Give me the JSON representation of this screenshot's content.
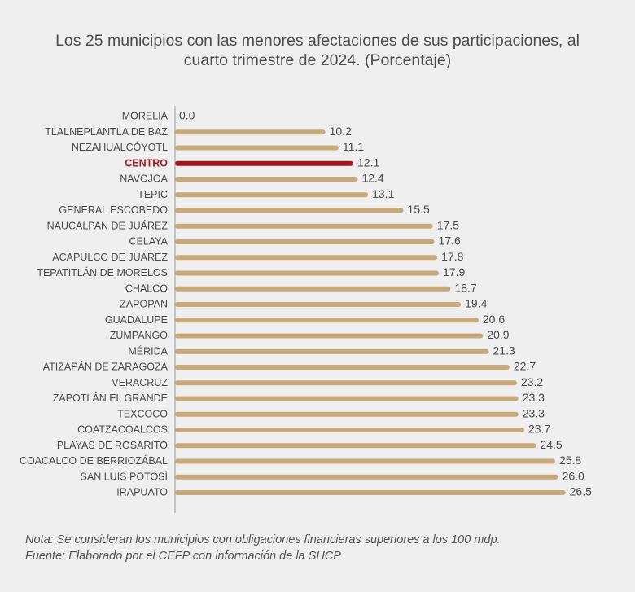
{
  "chart_data": {
    "type": "bar",
    "orientation": "horizontal",
    "title_lines": [
      "Los 25 municipios con las menores afectaciones de sus participaciones, al",
      "cuarto trimestre de 2024. (Porcentaje)"
    ],
    "categories": [
      "MORELIA",
      "TLALNEPLANTLA DE BAZ",
      "NEZAHUALCÓYOTL",
      "CENTRO",
      "NAVOJOA",
      "TEPIC",
      "GENERAL ESCOBEDO",
      "NAUCALPAN DE JUÁREZ",
      "CELAYA",
      "ACAPULCO DE JUÁREZ",
      "TEPATITLÁN DE MORELOS",
      "CHALCO",
      "ZAPOPAN",
      "GUADALUPE",
      "ZUMPANGO",
      "MÉRIDA",
      "ATIZAPÁN DE ZARAGOZA",
      "VERACRUZ",
      "ZAPOTLÁN EL GRANDE",
      "TEXCOCO",
      "COATZACOALCOS",
      "PLAYAS DE ROSARITO",
      "COACALCO DE BERRIOZÁBAL",
      "SAN LUIS POTOSÍ",
      "IRAPUATO"
    ],
    "values": [
      0.0,
      10.2,
      11.1,
      12.1,
      12.4,
      13.1,
      15.5,
      17.5,
      17.6,
      17.8,
      17.9,
      18.7,
      19.4,
      20.6,
      20.9,
      21.3,
      22.7,
      23.2,
      23.3,
      23.3,
      23.7,
      24.5,
      25.8,
      26.0,
      26.5
    ],
    "value_labels": [
      "0.0",
      "10.2",
      "11.1",
      "12.1",
      "12.4",
      "13.1",
      "15.5",
      "17.5",
      "17.6",
      "17.8",
      "17.9",
      "18.7",
      "19.4",
      "20.6",
      "20.9",
      "21.3",
      "22.7",
      "23.2",
      "23.3",
      "23.3",
      "23.7",
      "24.5",
      "25.8",
      "26.0",
      "26.5"
    ],
    "highlight": "CENTRO",
    "xlim": [
      0,
      27
    ],
    "grid": false,
    "legend": "none",
    "colors": {
      "bar": "#c8a97a",
      "highlight": "#a5161f",
      "axis": "#9a9a9a",
      "label": "#4a4a4a"
    }
  },
  "notes": {
    "note": "Nota: Se consideran los municipios con obligaciones financieras superiores a los 100 mdp.",
    "source": "Fuente: Elaborado por el CEFP con información de la SHCP"
  }
}
